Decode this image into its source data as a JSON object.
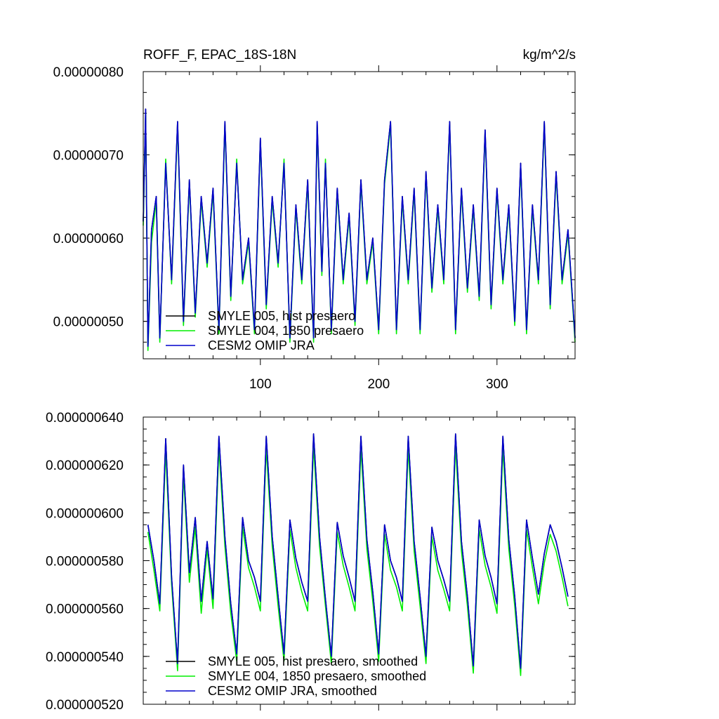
{
  "chart_data": [
    {
      "type": "line",
      "title": "ROFF_F, EPAC_18S-18N",
      "units": "kg/m^2/s",
      "xlim": [
        1,
        366
      ],
      "ylim": [
        4.55e-07,
        8e-07
      ],
      "yticks": [
        "0.00000080",
        "0.00000070",
        "0.00000060",
        "0.00000050"
      ],
      "ytick_values": [
        8e-07,
        7e-07,
        6e-07,
        5e-07
      ],
      "xticks": [
        "100",
        "200",
        "300"
      ],
      "xtick_values": [
        100,
        200,
        300
      ],
      "legend_position": "bottom-left",
      "series": [
        {
          "name": "SMYLE 005, hist presaero",
          "color": "#000000",
          "x": [
            1,
            3,
            5,
            8,
            12,
            15,
            20,
            25,
            30,
            35,
            40,
            45,
            50,
            55,
            60,
            65,
            70,
            75,
            80,
            85,
            90,
            95,
            100,
            105,
            110,
            115,
            120,
            125,
            130,
            135,
            140,
            145,
            148,
            152,
            155,
            160,
            165,
            170,
            175,
            180,
            185,
            190,
            195,
            200,
            205,
            210,
            215,
            220,
            225,
            230,
            235,
            240,
            245,
            250,
            255,
            260,
            265,
            270,
            275,
            280,
            285,
            290,
            295,
            300,
            305,
            310,
            315,
            320,
            325,
            330,
            335,
            340,
            345,
            350,
            355,
            360,
            366
          ],
          "y": [
            6.2e-07,
            7.55e-07,
            4.7e-07,
            6.1e-07,
            6.5e-07,
            4.8e-07,
            6.9e-07,
            5.5e-07,
            7.4e-07,
            5e-07,
            6.7e-07,
            5.1e-07,
            6.5e-07,
            5.7e-07,
            6.6e-07,
            4.9e-07,
            7.4e-07,
            5.3e-07,
            6.9e-07,
            5.5e-07,
            6e-07,
            4.9e-07,
            7.2e-07,
            5.2e-07,
            6.5e-07,
            5.7e-07,
            6.9e-07,
            4.8e-07,
            6.4e-07,
            5.5e-07,
            6.7e-07,
            4.8e-07,
            7.4e-07,
            5.6e-07,
            6.9e-07,
            4.9e-07,
            6.6e-07,
            5.5e-07,
            6.3e-07,
            5e-07,
            6.7e-07,
            5.5e-07,
            6e-07,
            4.9e-07,
            6.7e-07,
            7.4e-07,
            4.9e-07,
            6.5e-07,
            5.5e-07,
            6.6e-07,
            4.9e-07,
            6.8e-07,
            5.4e-07,
            6.4e-07,
            5.5e-07,
            7.4e-07,
            4.9e-07,
            6.6e-07,
            5.4e-07,
            6.4e-07,
            5.3e-07,
            7.3e-07,
            5.2e-07,
            6.6e-07,
            5.5e-07,
            6.4e-07,
            5e-07,
            6.9e-07,
            4.9e-07,
            6.4e-07,
            5.5e-07,
            7.4e-07,
            5.2e-07,
            6.8e-07,
            5.5e-07,
            6.1e-07,
            4.8e-07
          ]
        },
        {
          "name": "SMYLE 004, 1850 presaero",
          "color": "#00ee00",
          "x": [
            1,
            3,
            5,
            8,
            12,
            15,
            20,
            25,
            30,
            35,
            40,
            45,
            50,
            55,
            60,
            65,
            70,
            75,
            80,
            85,
            90,
            95,
            100,
            105,
            110,
            115,
            120,
            125,
            130,
            135,
            140,
            145,
            148,
            152,
            155,
            160,
            165,
            170,
            175,
            180,
            185,
            190,
            195,
            200,
            205,
            210,
            215,
            220,
            225,
            230,
            235,
            240,
            245,
            250,
            255,
            260,
            265,
            270,
            275,
            280,
            285,
            290,
            295,
            300,
            305,
            310,
            315,
            320,
            325,
            330,
            335,
            340,
            345,
            350,
            355,
            360,
            366
          ],
          "y": [
            6.15e-07,
            7.5e-07,
            4.65e-07,
            5.95e-07,
            6.45e-07,
            4.75e-07,
            6.95e-07,
            5.45e-07,
            7.35e-07,
            4.95e-07,
            6.65e-07,
            5.05e-07,
            6.45e-07,
            5.65e-07,
            6.55e-07,
            4.85e-07,
            7.35e-07,
            5.25e-07,
            6.95e-07,
            5.45e-07,
            5.95e-07,
            4.85e-07,
            7.15e-07,
            5.15e-07,
            6.45e-07,
            5.65e-07,
            6.95e-07,
            4.75e-07,
            6.35e-07,
            5.45e-07,
            6.65e-07,
            4.75e-07,
            7.35e-07,
            5.55e-07,
            6.95e-07,
            4.85e-07,
            6.55e-07,
            5.45e-07,
            6.25e-07,
            4.95e-07,
            6.65e-07,
            5.45e-07,
            5.95e-07,
            4.85e-07,
            6.65e-07,
            7.35e-07,
            4.85e-07,
            6.45e-07,
            5.45e-07,
            6.55e-07,
            4.85e-07,
            6.75e-07,
            5.35e-07,
            6.35e-07,
            5.45e-07,
            7.35e-07,
            4.85e-07,
            6.55e-07,
            5.35e-07,
            6.35e-07,
            5.25e-07,
            7.25e-07,
            5.15e-07,
            6.55e-07,
            5.45e-07,
            6.35e-07,
            4.95e-07,
            6.85e-07,
            4.85e-07,
            6.35e-07,
            5.45e-07,
            7.35e-07,
            5.15e-07,
            6.75e-07,
            5.45e-07,
            6.05e-07,
            4.75e-07
          ]
        },
        {
          "name": "CESM2 OMIP JRA",
          "color": "#0000cc",
          "x": [
            1,
            3,
            5,
            8,
            12,
            15,
            20,
            25,
            30,
            35,
            40,
            45,
            50,
            55,
            60,
            65,
            70,
            75,
            80,
            85,
            90,
            95,
            100,
            105,
            110,
            115,
            120,
            125,
            130,
            135,
            140,
            145,
            148,
            152,
            155,
            160,
            165,
            170,
            175,
            180,
            185,
            190,
            195,
            200,
            205,
            210,
            215,
            220,
            225,
            230,
            235,
            240,
            245,
            250,
            255,
            260,
            265,
            270,
            275,
            280,
            285,
            290,
            295,
            300,
            305,
            310,
            315,
            320,
            325,
            330,
            335,
            340,
            345,
            350,
            355,
            360,
            366
          ],
          "y": [
            6.2e-07,
            7.55e-07,
            4.7e-07,
            6.1e-07,
            6.5e-07,
            4.8e-07,
            6.9e-07,
            5.5e-07,
            7.4e-07,
            5e-07,
            6.7e-07,
            5.1e-07,
            6.5e-07,
            5.7e-07,
            6.6e-07,
            4.9e-07,
            7.4e-07,
            5.3e-07,
            6.9e-07,
            5.5e-07,
            6e-07,
            4.9e-07,
            7.2e-07,
            5.2e-07,
            6.5e-07,
            5.7e-07,
            6.9e-07,
            4.8e-07,
            6.4e-07,
            5.5e-07,
            6.7e-07,
            4.8e-07,
            7.4e-07,
            5.6e-07,
            6.9e-07,
            4.9e-07,
            6.6e-07,
            5.5e-07,
            6.3e-07,
            5e-07,
            6.7e-07,
            5.5e-07,
            6e-07,
            4.9e-07,
            6.7e-07,
            7.4e-07,
            4.9e-07,
            6.5e-07,
            5.5e-07,
            6.6e-07,
            4.9e-07,
            6.8e-07,
            5.4e-07,
            6.4e-07,
            5.5e-07,
            7.4e-07,
            4.9e-07,
            6.6e-07,
            5.4e-07,
            6.4e-07,
            5.3e-07,
            7.3e-07,
            5.2e-07,
            6.6e-07,
            5.5e-07,
            6.4e-07,
            5e-07,
            6.9e-07,
            4.9e-07,
            6.4e-07,
            5.5e-07,
            7.4e-07,
            5.2e-07,
            6.8e-07,
            5.5e-07,
            6.1e-07,
            4.8e-07
          ]
        }
      ]
    },
    {
      "type": "line",
      "title": "",
      "xlim": [
        1,
        366
      ],
      "ylim": [
        5.2e-07,
        6.4e-07
      ],
      "yticks": [
        "0.000000640",
        "0.000000620",
        "0.000000600",
        "0.000000580",
        "0.000000560",
        "0.000000540",
        "0.000000520"
      ],
      "ytick_values": [
        6.4e-07,
        6.2e-07,
        6e-07,
        5.8e-07,
        5.6e-07,
        5.4e-07,
        5.2e-07
      ],
      "xtick_values": [
        100,
        200,
        300
      ],
      "legend_position": "bottom-left",
      "series": [
        {
          "name": "SMYLE 005, hist presaero, smoothed",
          "color": "#000000",
          "x": [
            5,
            10,
            15,
            20,
            25,
            30,
            35,
            40,
            45,
            50,
            55,
            60,
            65,
            70,
            75,
            80,
            85,
            90,
            95,
            100,
            105,
            110,
            115,
            120,
            125,
            130,
            135,
            140,
            145,
            150,
            155,
            160,
            165,
            170,
            175,
            180,
            185,
            190,
            195,
            200,
            205,
            210,
            215,
            220,
            225,
            230,
            235,
            240,
            245,
            250,
            255,
            260,
            265,
            270,
            275,
            280,
            285,
            290,
            295,
            300,
            305,
            310,
            315,
            320,
            325,
            330,
            335,
            340,
            345,
            350,
            355,
            360
          ],
          "y": [
            5.95e-07,
            5.8e-07,
            5.62e-07,
            6.31e-07,
            5.73e-07,
            5.37e-07,
            6.2e-07,
            5.75e-07,
            5.98e-07,
            5.63e-07,
            5.88e-07,
            5.64e-07,
            6.32e-07,
            5.9e-07,
            5.62e-07,
            5.41e-07,
            5.98e-07,
            5.8e-07,
            5.73e-07,
            5.63e-07,
            6.32e-07,
            5.9e-07,
            5.65e-07,
            5.41e-07,
            5.97e-07,
            5.81e-07,
            5.71e-07,
            5.63e-07,
            6.33e-07,
            5.9e-07,
            5.64e-07,
            5.4e-07,
            5.96e-07,
            5.82e-07,
            5.73e-07,
            5.63e-07,
            6.32e-07,
            5.89e-07,
            5.67e-07,
            5.41e-07,
            5.95e-07,
            5.8e-07,
            5.73e-07,
            5.63e-07,
            6.32e-07,
            5.88e-07,
            5.65e-07,
            5.4e-07,
            5.94e-07,
            5.8e-07,
            5.72e-07,
            5.63e-07,
            6.33e-07,
            5.88e-07,
            5.65e-07,
            5.36e-07,
            5.97e-07,
            5.82e-07,
            5.73e-07,
            5.62e-07,
            6.32e-07,
            5.89e-07,
            5.65e-07,
            5.35e-07,
            5.97e-07,
            5.81e-07,
            5.66e-07,
            5.83e-07,
            5.95e-07,
            5.88e-07,
            5.77e-07,
            5.65e-07
          ]
        },
        {
          "name": "SMYLE 004, 1850 presaero, smoothed",
          "color": "#00ee00",
          "x": [
            5,
            10,
            15,
            20,
            25,
            30,
            35,
            40,
            45,
            50,
            55,
            60,
            65,
            70,
            75,
            80,
            85,
            90,
            95,
            100,
            105,
            110,
            115,
            120,
            125,
            130,
            135,
            140,
            145,
            150,
            155,
            160,
            165,
            170,
            175,
            180,
            185,
            190,
            195,
            200,
            205,
            210,
            215,
            220,
            225,
            230,
            235,
            240,
            245,
            250,
            255,
            260,
            265,
            270,
            275,
            280,
            285,
            290,
            295,
            300,
            305,
            310,
            315,
            320,
            325,
            330,
            335,
            340,
            345,
            350,
            355,
            360
          ],
          "y": [
            5.92e-07,
            5.76e-07,
            5.59e-07,
            6.26e-07,
            5.7e-07,
            5.34e-07,
            6.16e-07,
            5.71e-07,
            5.94e-07,
            5.58e-07,
            5.85e-07,
            5.6e-07,
            6.27e-07,
            5.86e-07,
            5.58e-07,
            5.38e-07,
            5.94e-07,
            5.77e-07,
            5.69e-07,
            5.59e-07,
            6.27e-07,
            5.86e-07,
            5.61e-07,
            5.38e-07,
            5.93e-07,
            5.77e-07,
            5.67e-07,
            5.59e-07,
            6.28e-07,
            5.86e-07,
            5.61e-07,
            5.37e-07,
            5.92e-07,
            5.78e-07,
            5.69e-07,
            5.59e-07,
            6.27e-07,
            5.85e-07,
            5.63e-07,
            5.38e-07,
            5.91e-07,
            5.76e-07,
            5.69e-07,
            5.59e-07,
            6.27e-07,
            5.84e-07,
            5.61e-07,
            5.37e-07,
            5.9e-07,
            5.76e-07,
            5.68e-07,
            5.59e-07,
            6.28e-07,
            5.84e-07,
            5.61e-07,
            5.33e-07,
            5.93e-07,
            5.78e-07,
            5.69e-07,
            5.58e-07,
            6.27e-07,
            5.85e-07,
            5.61e-07,
            5.32e-07,
            5.93e-07,
            5.77e-07,
            5.62e-07,
            5.79e-07,
            5.91e-07,
            5.84e-07,
            5.73e-07,
            5.61e-07
          ]
        },
        {
          "name": "CESM2 OMIP JRA, smoothed",
          "color": "#0000cc",
          "x": [
            5,
            10,
            15,
            20,
            25,
            30,
            35,
            40,
            45,
            50,
            55,
            60,
            65,
            70,
            75,
            80,
            85,
            90,
            95,
            100,
            105,
            110,
            115,
            120,
            125,
            130,
            135,
            140,
            145,
            150,
            155,
            160,
            165,
            170,
            175,
            180,
            185,
            190,
            195,
            200,
            205,
            210,
            215,
            220,
            225,
            230,
            235,
            240,
            245,
            250,
            255,
            260,
            265,
            270,
            275,
            280,
            285,
            290,
            295,
            300,
            305,
            310,
            315,
            320,
            325,
            330,
            335,
            340,
            345,
            350,
            355,
            360
          ],
          "y": [
            5.95e-07,
            5.8e-07,
            5.62e-07,
            6.31e-07,
            5.73e-07,
            5.37e-07,
            6.2e-07,
            5.75e-07,
            5.98e-07,
            5.63e-07,
            5.88e-07,
            5.64e-07,
            6.32e-07,
            5.9e-07,
            5.62e-07,
            5.41e-07,
            5.98e-07,
            5.8e-07,
            5.73e-07,
            5.63e-07,
            6.32e-07,
            5.9e-07,
            5.65e-07,
            5.41e-07,
            5.97e-07,
            5.81e-07,
            5.71e-07,
            5.63e-07,
            6.33e-07,
            5.9e-07,
            5.64e-07,
            5.4e-07,
            5.96e-07,
            5.82e-07,
            5.73e-07,
            5.63e-07,
            6.32e-07,
            5.89e-07,
            5.67e-07,
            5.41e-07,
            5.95e-07,
            5.8e-07,
            5.73e-07,
            5.63e-07,
            6.32e-07,
            5.88e-07,
            5.65e-07,
            5.4e-07,
            5.94e-07,
            5.8e-07,
            5.72e-07,
            5.63e-07,
            6.33e-07,
            5.88e-07,
            5.65e-07,
            5.36e-07,
            5.97e-07,
            5.82e-07,
            5.73e-07,
            5.62e-07,
            6.32e-07,
            5.89e-07,
            5.65e-07,
            5.35e-07,
            5.97e-07,
            5.81e-07,
            5.66e-07,
            5.83e-07,
            5.95e-07,
            5.88e-07,
            5.77e-07,
            5.65e-07
          ]
        }
      ]
    }
  ]
}
